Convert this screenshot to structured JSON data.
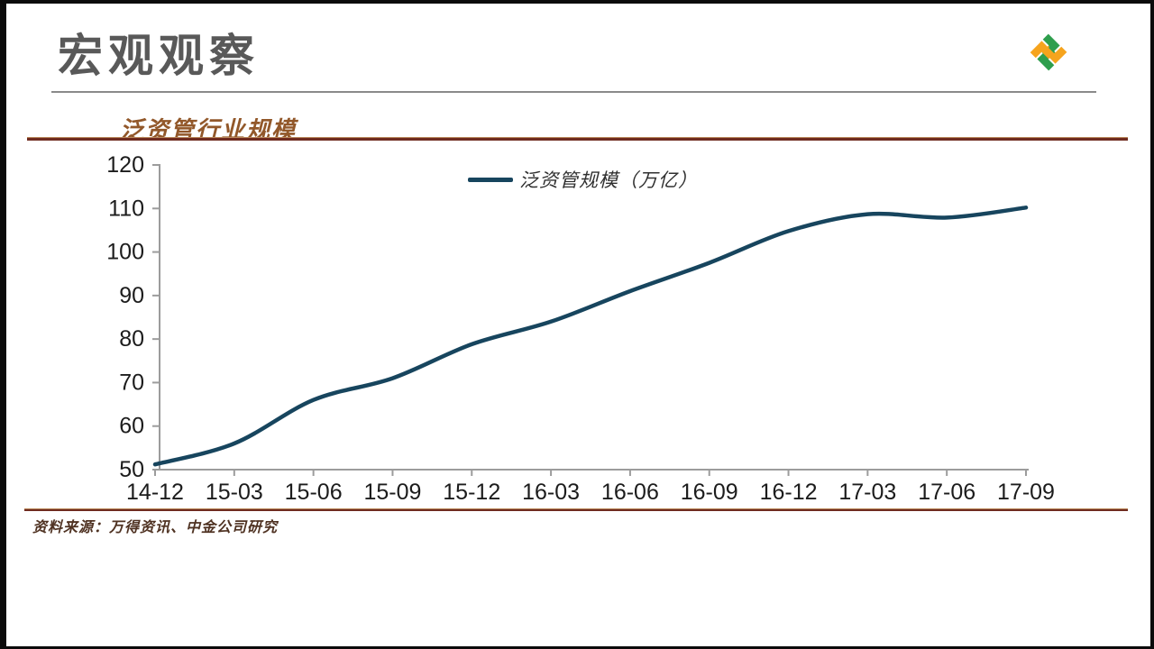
{
  "slide": {
    "title": "宏观观察"
  },
  "logo": {
    "green": "#2e9e4d",
    "orange": "#f6a41d"
  },
  "figure": {
    "title": "泛资管行业规模",
    "source": "资料来源：万得资讯、中金公司研究"
  },
  "palette": {
    "title_gray": "#595959",
    "title_brown": "#92582a",
    "accent_maroon": "#6f2b1f",
    "accent_copper": "#b9885a",
    "line_blue": "#17455e",
    "source_brown": "#4f3222",
    "axis_gray": "#9c9c9c",
    "tick_label": "#1c1c1c"
  },
  "chart_data": {
    "type": "line",
    "title": "泛资管行业规模",
    "categories": [
      "14-12",
      "15-03",
      "15-06",
      "15-09",
      "15-12",
      "16-03",
      "16-06",
      "16-09",
      "16-12",
      "17-03",
      "17-06",
      "17-09"
    ],
    "series": [
      {
        "name": "泛资管规模（万亿）",
        "values": [
          51.2,
          56.0,
          66.0,
          71.0,
          78.8,
          84.0,
          91.0,
          97.5,
          104.8,
          108.7,
          107.9,
          110.2
        ]
      }
    ],
    "xlabel": "",
    "ylabel": "",
    "ylim": [
      50,
      120
    ],
    "yticks": [
      50,
      60,
      70,
      80,
      90,
      100,
      110,
      120
    ],
    "grid": false,
    "legend_position": "top-center",
    "line_color": "#17455e",
    "smooth": true
  }
}
